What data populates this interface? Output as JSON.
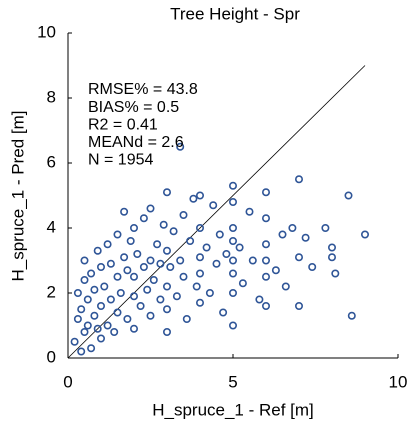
{
  "chart_data": {
    "type": "scatter",
    "title": "Tree Height - Spr",
    "xlabel": "H_spruce_1 - Ref [m]",
    "ylabel": "H_spruce_1 - Pred [m]",
    "annotations": [
      "RMSE% = 43.8",
      "BIAS% = 0.5",
      "R2 = 0.41",
      "MEANd = 2.6",
      "N = 1954"
    ],
    "xlim": [
      0,
      10
    ],
    "ylim": [
      0,
      10
    ],
    "xticks": [
      0,
      5,
      10
    ],
    "yticks": [
      0,
      2,
      4,
      6,
      8,
      10
    ],
    "color": "#2f5597",
    "reference_line": {
      "x": [
        0,
        9
      ],
      "y": [
        0,
        9
      ]
    },
    "x": [
      0.2,
      0.3,
      0.3,
      0.4,
      0.4,
      0.5,
      0.5,
      0.5,
      0.6,
      0.6,
      0.7,
      0.7,
      0.8,
      0.8,
      0.9,
      0.9,
      1.0,
      1.0,
      1.0,
      1.1,
      1.2,
      1.2,
      1.3,
      1.3,
      1.4,
      1.5,
      1.5,
      1.5,
      1.6,
      1.7,
      1.7,
      1.8,
      1.8,
      1.9,
      2.0,
      2.0,
      2.0,
      2.0,
      2.1,
      2.2,
      2.3,
      2.3,
      2.4,
      2.5,
      2.5,
      2.5,
      2.6,
      2.7,
      2.8,
      2.8,
      2.9,
      3.0,
      3.0,
      3.0,
      3.0,
      3.0,
      3.1,
      3.2,
      3.3,
      3.4,
      3.5,
      3.5,
      3.6,
      3.7,
      3.8,
      3.9,
      4.0,
      4.0,
      4.0,
      4.0,
      4.0,
      3.4,
      4.2,
      4.3,
      4.4,
      4.5,
      4.6,
      4.7,
      4.8,
      5.0,
      5.0,
      5.0,
      5.0,
      5.0,
      5.0,
      5.0,
      5.0,
      5.2,
      5.3,
      5.5,
      5.6,
      5.8,
      6.0,
      6.0,
      6.0,
      6.0,
      6.0,
      6.0,
      6.3,
      6.5,
      6.6,
      6.8,
      7.0,
      7.0,
      7.0,
      7.2,
      7.4,
      7.8,
      8.0,
      8.0,
      8.5,
      8.6,
      8.1,
      9.0
    ],
    "y": [
      0.5,
      1.2,
      2.0,
      0.2,
      1.5,
      0.8,
      2.4,
      3.0,
      1.0,
      1.8,
      0.3,
      2.6,
      1.3,
      2.1,
      0.9,
      3.3,
      1.6,
      2.8,
      0.6,
      2.2,
      1.0,
      3.5,
      1.8,
      2.9,
      0.8,
      2.5,
      3.8,
      1.4,
      2.0,
      3.1,
      4.5,
      1.2,
      2.7,
      3.6,
      1.9,
      2.5,
      4.0,
      0.9,
      3.2,
      1.6,
      2.8,
      4.3,
      2.1,
      3.0,
      1.3,
      4.6,
      2.4,
      3.5,
      1.8,
      2.9,
      4.1,
      2.2,
      3.3,
      5.1,
      1.5,
      0.8,
      2.8,
      3.9,
      1.9,
      3.0,
      4.4,
      2.5,
      1.2,
      3.6,
      4.9,
      2.2,
      3.1,
      4.0,
      1.7,
      5.0,
      2.6,
      6.5,
      3.4,
      2.0,
      4.7,
      2.9,
      3.8,
      1.4,
      3.2,
      2.0,
      3.0,
      4.0,
      5.3,
      1.0,
      2.6,
      3.6,
      4.8,
      3.4,
      2.3,
      4.5,
      3.0,
      1.8,
      2.5,
      3.5,
      4.3,
      5.1,
      1.6,
      3.0,
      2.7,
      3.8,
      2.2,
      4.0,
      3.1,
      5.5,
      1.6,
      3.7,
      2.8,
      4.0,
      3.4,
      3.1,
      5.0,
      1.3,
      2.6,
      3.8
    ]
  }
}
